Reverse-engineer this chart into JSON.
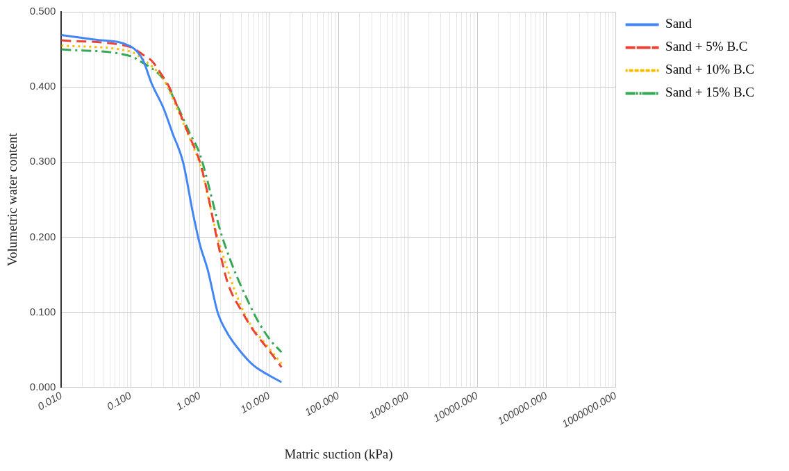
{
  "chart_data": {
    "type": "line",
    "xlabel": "Matric suction (kPa)",
    "ylabel": "Volumetric water content",
    "log": "x",
    "grid": true,
    "legend": "top right",
    "marker": "none",
    "xlim": [
      0.01,
      1000000
    ],
    "ylim": [
      0,
      0.5
    ],
    "xticks": [
      {
        "value": 0.01,
        "label": "0.010"
      },
      {
        "value": 0.02,
        "label": null
      },
      {
        "value": 0.03,
        "label": null
      },
      {
        "value": 0.04,
        "label": null
      },
      {
        "value": 0.05,
        "label": null
      },
      {
        "value": 0.06,
        "label": null
      },
      {
        "value": 0.07,
        "label": null
      },
      {
        "value": 0.08,
        "label": null
      },
      {
        "value": 0.09,
        "label": null
      },
      {
        "value": 0.1,
        "label": "0.100"
      },
      {
        "value": 0.2,
        "label": null
      },
      {
        "value": 0.3,
        "label": null
      },
      {
        "value": 0.4,
        "label": null
      },
      {
        "value": 0.5,
        "label": null
      },
      {
        "value": 0.6,
        "label": null
      },
      {
        "value": 0.7,
        "label": null
      },
      {
        "value": 0.8,
        "label": null
      },
      {
        "value": 0.9,
        "label": null
      },
      {
        "value": 1,
        "label": "1.000"
      },
      {
        "value": 2,
        "label": null
      },
      {
        "value": 3,
        "label": null
      },
      {
        "value": 4,
        "label": null
      },
      {
        "value": 5,
        "label": null
      },
      {
        "value": 6,
        "label": null
      },
      {
        "value": 7,
        "label": null
      },
      {
        "value": 8,
        "label": null
      },
      {
        "value": 9,
        "label": null
      },
      {
        "value": 10,
        "label": "10.000"
      },
      {
        "value": 20,
        "label": null
      },
      {
        "value": 30,
        "label": null
      },
      {
        "value": 40,
        "label": null
      },
      {
        "value": 50,
        "label": null
      },
      {
        "value": 60,
        "label": null
      },
      {
        "value": 70,
        "label": null
      },
      {
        "value": 80,
        "label": null
      },
      {
        "value": 90,
        "label": null
      },
      {
        "value": 100,
        "label": "100.000"
      },
      {
        "value": 200,
        "label": null
      },
      {
        "value": 300,
        "label": null
      },
      {
        "value": 400,
        "label": null
      },
      {
        "value": 500,
        "label": null
      },
      {
        "value": 600,
        "label": null
      },
      {
        "value": 700,
        "label": null
      },
      {
        "value": 800,
        "label": null
      },
      {
        "value": 900,
        "label": null
      },
      {
        "value": 1000,
        "label": "1000.000"
      },
      {
        "value": 2000,
        "label": null
      },
      {
        "value": 3000,
        "label": null
      },
      {
        "value": 4000,
        "label": null
      },
      {
        "value": 5000,
        "label": null
      },
      {
        "value": 6000,
        "label": null
      },
      {
        "value": 7000,
        "label": null
      },
      {
        "value": 8000,
        "label": null
      },
      {
        "value": 9000,
        "label": null
      },
      {
        "value": 10000,
        "label": "10000.000"
      },
      {
        "value": 20000,
        "label": null
      },
      {
        "value": 30000,
        "label": null
      },
      {
        "value": 40000,
        "label": null
      },
      {
        "value": 50000,
        "label": null
      },
      {
        "value": 60000,
        "label": null
      },
      {
        "value": 70000,
        "label": null
      },
      {
        "value": 80000,
        "label": null
      },
      {
        "value": 90000,
        "label": null
      },
      {
        "value": 100000,
        "label": "100000.000"
      },
      {
        "value": 200000,
        "label": null
      },
      {
        "value": 300000,
        "label": null
      },
      {
        "value": 400000,
        "label": null
      },
      {
        "value": 500000,
        "label": null
      },
      {
        "value": 600000,
        "label": null
      },
      {
        "value": 700000,
        "label": null
      },
      {
        "value": 800000,
        "label": null
      },
      {
        "value": 900000,
        "label": null
      },
      {
        "value": 1000000,
        "label": "1000000.000"
      }
    ],
    "yticks": [
      {
        "value": 0,
        "label": "0.000"
      },
      {
        "value": 0.1,
        "label": "0.100"
      },
      {
        "value": 0.2,
        "label": "0.200"
      },
      {
        "value": 0.3,
        "label": "0.300"
      },
      {
        "value": 0.4,
        "label": "0.400"
      },
      {
        "value": 0.5,
        "label": "0.500"
      }
    ],
    "series": [
      {
        "name": "Sand",
        "color": "#4285f4",
        "line_style": "solid",
        "x": [
          0.01,
          0.03,
          0.1,
          0.15,
          0.2,
          0.3,
          0.4,
          0.57,
          0.8,
          1,
          1.3,
          1.8,
          2.5,
          4,
          6,
          10,
          15
        ],
        "values": [
          0.469,
          0.463,
          0.454,
          0.436,
          0.405,
          0.371,
          0.339,
          0.3,
          0.23,
          0.19,
          0.156,
          0.1,
          0.072,
          0.046,
          0.029,
          0.016,
          0.007
        ]
      },
      {
        "name": "Sand + 5% B.C",
        "color": "#ea4335",
        "line_style": "dashed",
        "x": [
          0.01,
          0.1,
          0.15,
          0.2,
          0.3,
          0.36,
          0.5,
          0.7,
          1,
          1.3,
          1.74,
          2.5,
          4.1,
          6,
          10,
          15
        ],
        "values": [
          0.462,
          0.453,
          0.443,
          0.435,
          0.412,
          0.4,
          0.368,
          0.335,
          0.3,
          0.257,
          0.2,
          0.14,
          0.1,
          0.075,
          0.049,
          0.027
        ]
      },
      {
        "name": "Sand + 10% B.C",
        "color": "#fbbc04",
        "line_style": "dotted",
        "x": [
          0.01,
          0.1,
          0.15,
          0.2,
          0.3,
          0.5,
          0.7,
          1,
          1.8,
          4.3,
          10,
          15
        ],
        "values": [
          0.455,
          0.447,
          0.437,
          0.428,
          0.41,
          0.365,
          0.333,
          0.297,
          0.2,
          0.1,
          0.052,
          0.032
        ]
      },
      {
        "name": "Sand + 15% B.C",
        "color": "#34a853",
        "line_style": "dashdot",
        "x": [
          0.01,
          0.1,
          0.15,
          0.2,
          0.3,
          0.5,
          0.7,
          1,
          2.1,
          5.9,
          10,
          15
        ],
        "values": [
          0.45,
          0.441,
          0.432,
          0.425,
          0.41,
          0.37,
          0.34,
          0.31,
          0.2,
          0.1,
          0.065,
          0.047
        ]
      }
    ]
  }
}
